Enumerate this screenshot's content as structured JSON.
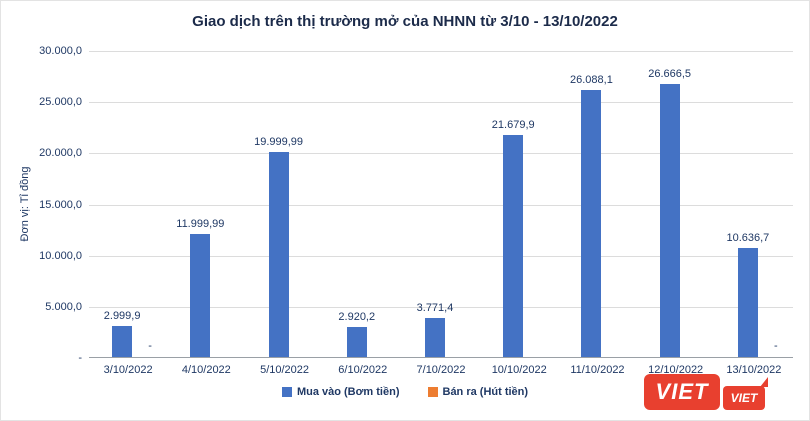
{
  "ylabel": "Đơn vị: Tỉ đồng",
  "chart_data": {
    "type": "bar",
    "title": "Giao dịch trên thị trường mở của NHNN từ 3/10 - 13/10/2022",
    "xlabel": "",
    "ylabel": "Đơn vị: Tỉ đồng",
    "categories": [
      "3/10/2022",
      "4/10/2022",
      "5/10/2022",
      "6/10/2022",
      "7/10/2022",
      "10/10/2022",
      "11/10/2022",
      "12/10/2022",
      "13/10/2022"
    ],
    "series": [
      {
        "name": "Mua vào (Bơm tiền)",
        "color": "#4472C4",
        "values": [
          2999.9,
          11999.99,
          19999.99,
          2920.2,
          3771.4,
          21679.9,
          26088.1,
          26666.5,
          10636.7
        ],
        "labels": [
          "2.999,9",
          "11.999,99",
          "19.999,99",
          "2.920,2",
          "3.771,4",
          "21.679,9",
          "26.088,1",
          "26.666,5",
          "10.636,7"
        ]
      },
      {
        "name": "Bán ra (Hút tiền)",
        "color": "#ED7D31",
        "values": [
          0,
          0,
          0,
          0,
          0,
          0,
          0,
          0,
          0
        ],
        "labels": [
          "-",
          "",
          "",
          "",
          "",
          "",
          "",
          "",
          "-"
        ]
      }
    ],
    "ylim": [
      0,
      30000
    ],
    "ytick_step": 5000,
    "ytick_labels": [
      "30.000,0",
      "25.000,0",
      "20.000,0",
      "15.000,0",
      "10.000,0",
      "5.000,0",
      "-"
    ],
    "grid": true,
    "legend_position": "bottom"
  },
  "watermark": {
    "primary": "VIET",
    "secondary": "VIET"
  }
}
